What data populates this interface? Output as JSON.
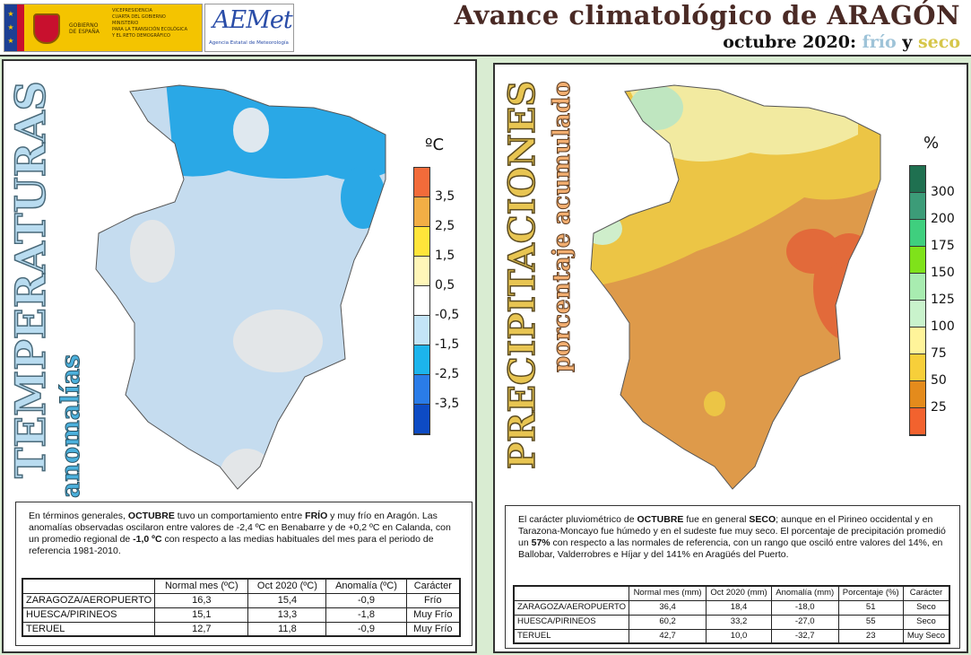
{
  "header": {
    "gov": {
      "line1": "GOBIERNO",
      "line2": "DE ESPAÑA",
      "v1": "VICEPRESIDENCIA",
      "v2": "CUARTA DEL GOBIERNO",
      "m1": "MINISTERIO",
      "m2": "PARA LA TRANSICIÓN ECOLÓGICA",
      "m3": "Y EL RETO DEMOGRÁFICO"
    },
    "aemet": {
      "logo": "AEMet",
      "subtitle": "Agencia Estatal de Meteorología"
    },
    "title": "Avance climatológico de ARAGÓN",
    "subtitle_prefix": "octubre 2020:",
    "subtitle_cold": "frío",
    "subtitle_and": "y",
    "subtitle_dry": "seco"
  },
  "temperature": {
    "title": "TEMPERATURAS",
    "subtitle": "anomalías",
    "unit": "ºC",
    "legend_labels": [
      "3,5",
      "2,5",
      "1,5",
      "0,5",
      "-0,5",
      "-1,5",
      "-2,5",
      "-3,5"
    ],
    "legend_colors": [
      "#f26b3a",
      "#f2ae45",
      "#ffe53a",
      "#fff6b8",
      "#ffffff",
      "#c3e4f7",
      "#1cb4ec",
      "#2a7ce8",
      "#0d4bc4"
    ],
    "summary_parts": [
      "En términos generales, ",
      "OCTUBRE",
      " tuvo un comportamiento entre ",
      "FRÍO",
      " y muy frío en Aragón. Las anomalías observadas oscilaron entre valores de -2,4 ºC en Benabarre y de +0,2 ºC en Calanda, con un promedio regional de ",
      "-1,0 ºC",
      " con respecto a las medias habituales del mes para el periodo de referencia 1981-2010."
    ],
    "table": {
      "headers": [
        "Normal mes (ºC)",
        "Oct 2020 (ºC)",
        "Anomalía (ºC)",
        "Carácter"
      ],
      "rows": [
        [
          "ZARAGOZA/AEROPUERTO",
          "16,3",
          "15,4",
          "-0,9",
          "Frío"
        ],
        [
          "HUESCA/PIRINEOS",
          "15,1",
          "13,3",
          "-1,8",
          "Muy Frío"
        ],
        [
          "TERUEL",
          "12,7",
          "11,8",
          "-0,9",
          "Muy Frío"
        ]
      ]
    }
  },
  "precipitation": {
    "title": "PRECIPITACIONES",
    "subtitle": "porcentaje acumulado",
    "unit": "%",
    "legend_labels": [
      "300",
      "200",
      "175",
      "150",
      "125",
      "100",
      "75",
      "50",
      "25"
    ],
    "legend_colors": [
      "#1f7050",
      "#3c9c78",
      "#3fcf7e",
      "#7fe21a",
      "#a8ecb0",
      "#c9f3cc",
      "#fff49a",
      "#f7cf3a",
      "#e48b1c",
      "#f2622e"
    ],
    "summary_parts": [
      "El carácter pluviométrico de ",
      "OCTUBRE",
      " fue en general ",
      "SECO",
      "; aunque en el Pirineo occidental y en Tarazona-Moncayo fue húmedo y en el sudeste fue muy seco. El porcentaje de precipitación promedió un ",
      "57%",
      " con respecto a las normales de referencia, con un rango que osciló entre valores del 14%, en Ballobar, Valderrobres e Híjar y del 141% en Aragüés del Puerto."
    ],
    "table": {
      "headers": [
        "Normal mes (mm)",
        "Oct 2020 (mm)",
        "Anomalía (mm)",
        "Porcentaje (%)",
        "Carácter"
      ],
      "rows": [
        [
          "ZARAGOZA/AEROPUERTO",
          "36,4",
          "18,4",
          "-18,0",
          "51",
          "Seco"
        ],
        [
          "HUESCA/PIRINEOS",
          "60,2",
          "33,2",
          "-27,0",
          "55",
          "Seco"
        ],
        [
          "TERUEL",
          "42,7",
          "10,0",
          "-32,7",
          "23",
          "Muy Seco"
        ]
      ]
    }
  }
}
